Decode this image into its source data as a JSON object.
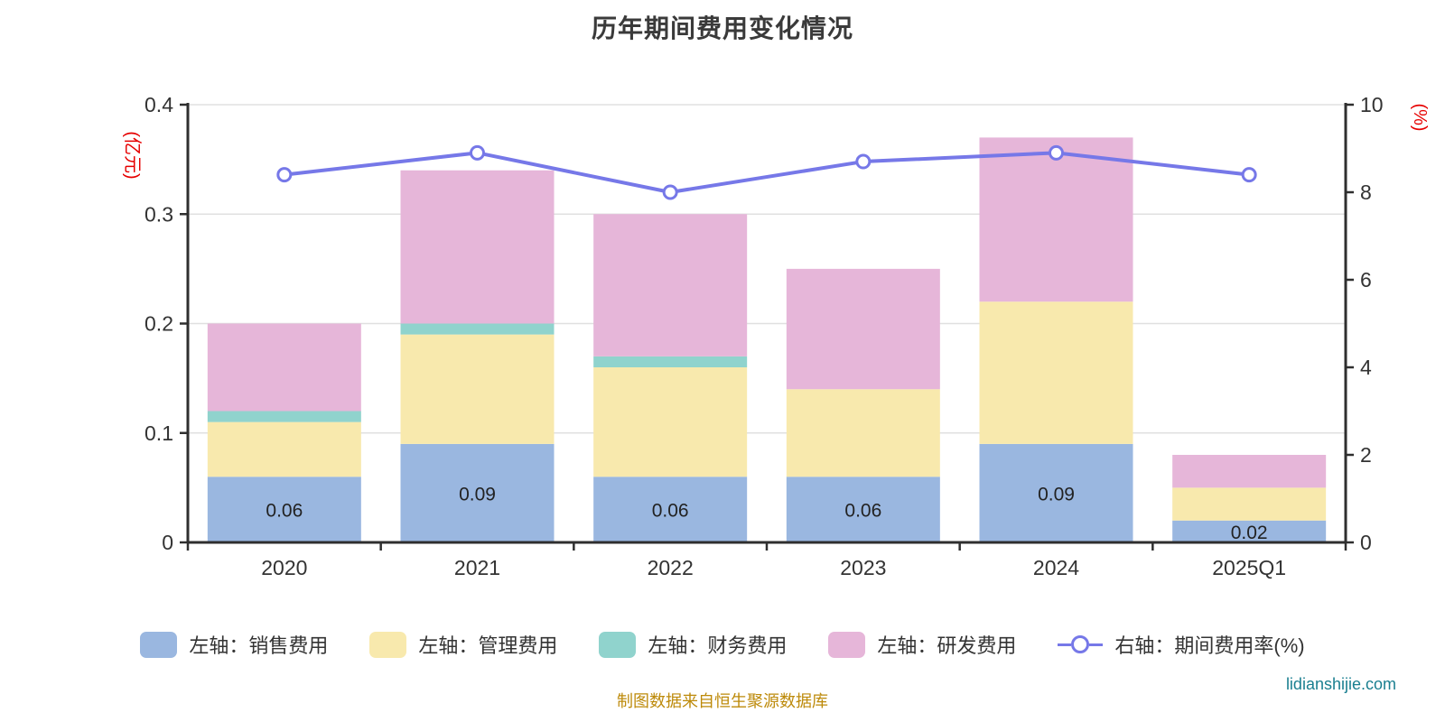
{
  "chart_data": {
    "type": "bar-line-combo",
    "title": "历年期间费用变化情况",
    "categories": [
      "2020",
      "2021",
      "2022",
      "2023",
      "2024",
      "2025Q1"
    ],
    "left_axis": {
      "name": "(亿元)",
      "color": "#e60000",
      "min": 0,
      "max": 0.4,
      "ticks": [
        "0",
        "0.1",
        "0.2",
        "0.3",
        "0.4"
      ]
    },
    "right_axis": {
      "name": "(%)",
      "color": "#e60000",
      "min": 0,
      "max": 10,
      "ticks": [
        "0",
        "2",
        "4",
        "6",
        "8",
        "10"
      ]
    },
    "grid": true,
    "legend_position": "bottom",
    "series": [
      {
        "name": "左轴：销售费用",
        "type": "bar",
        "stack": true,
        "axis": "left",
        "color": "#9ab7e0",
        "values": [
          0.06,
          0.09,
          0.06,
          0.06,
          0.09,
          0.02
        ],
        "data_labels": [
          "0.06",
          "0.09",
          "0.06",
          "0.06",
          "0.09",
          "0.02"
        ]
      },
      {
        "name": "左轴：管理费用",
        "type": "bar",
        "stack": true,
        "axis": "left",
        "color": "#f8e9ad",
        "values": [
          0.05,
          0.1,
          0.1,
          0.08,
          0.13,
          0.03
        ]
      },
      {
        "name": "左轴：财务费用",
        "type": "bar",
        "stack": true,
        "axis": "left",
        "color": "#90d3cd",
        "values": [
          0.01,
          0.01,
          0.01,
          0,
          0,
          0
        ]
      },
      {
        "name": "左轴：研发费用",
        "type": "bar",
        "stack": true,
        "axis": "left",
        "color": "#e6b6d9",
        "values": [
          0.08,
          0.14,
          0.13,
          0.11,
          0.15,
          0.03
        ]
      },
      {
        "name": "右轴：期间费用率(%)",
        "type": "line",
        "axis": "right",
        "color": "#7678e8",
        "marker": "circle",
        "values": [
          8.4,
          8.9,
          8.0,
          8.7,
          8.9,
          8.4
        ]
      }
    ]
  },
  "footer": {
    "source_note": "制图数据来自恒生聚源数据库",
    "color": "#bd8a0a"
  },
  "watermark": {
    "text": "lidianshijie.com",
    "color": "#1a7f90"
  }
}
